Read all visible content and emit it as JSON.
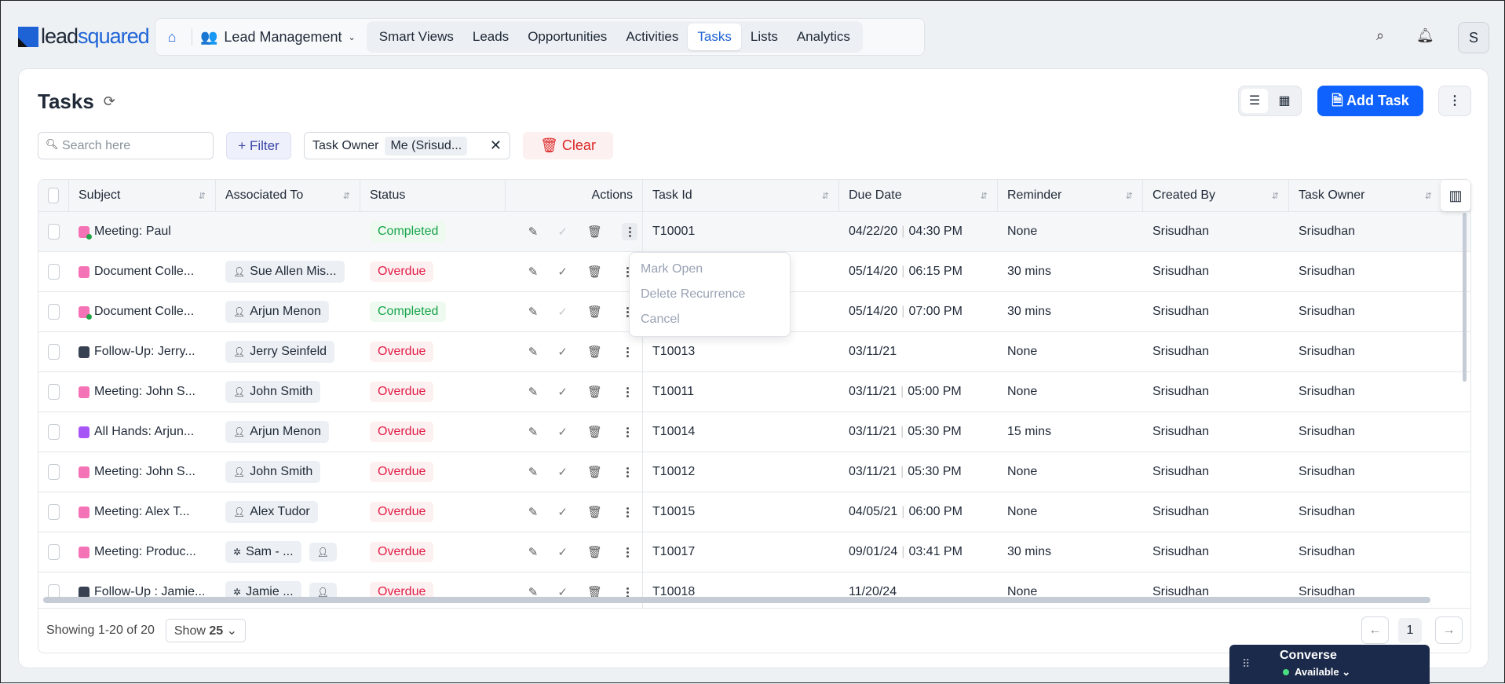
{
  "brand": {
    "logo_a": "lead",
    "logo_b": "squared"
  },
  "nav": {
    "module": "Lead Management",
    "tabs": [
      "Smart Views",
      "Leads",
      "Opportunities",
      "Activities",
      "Tasks",
      "Lists",
      "Analytics"
    ],
    "active": "Tasks"
  },
  "user": {
    "initial": "S"
  },
  "page": {
    "title": "Tasks",
    "add_task": "Add Task"
  },
  "filters": {
    "search_placeholder": "Search here",
    "filter_label": "Filter",
    "chip_label": "Task Owner",
    "chip_value": "Me (Srisud...",
    "clear_label": "Clear"
  },
  "columns": [
    "Subject",
    "Associated To",
    "Status",
    "Actions",
    "Task Id",
    "Due Date",
    "Reminder",
    "Created By",
    "Task Owner"
  ],
  "rows": [
    {
      "subject": "Meeting: Paul",
      "icon": "meeting",
      "done": true,
      "assoc": [],
      "status": "Completed",
      "id": "T10001",
      "date": "04/22/20",
      "time": "04:30 PM",
      "reminder": "None",
      "created": "Srisudhan",
      "owner": "Srisudhan"
    },
    {
      "subject": "Document Colle...",
      "icon": "meeting",
      "done": false,
      "assoc": [
        {
          "t": "Sue Allen Mis...",
          "i": "person"
        }
      ],
      "status": "Overdue",
      "id": "",
      "date": "05/14/20",
      "time": "06:15 PM",
      "reminder": "30 mins",
      "created": "Srisudhan",
      "owner": "Srisudhan"
    },
    {
      "subject": "Document Colle...",
      "icon": "meeting",
      "done": true,
      "assoc": [
        {
          "t": "Arjun Menon",
          "i": "person"
        }
      ],
      "status": "Completed",
      "id": "",
      "date": "05/14/20",
      "time": "07:00 PM",
      "reminder": "30 mins",
      "created": "Srisudhan",
      "owner": "Srisudhan"
    },
    {
      "subject": "Follow-Up: Jerry...",
      "icon": "followup",
      "done": false,
      "assoc": [
        {
          "t": "Jerry Seinfeld",
          "i": "person"
        }
      ],
      "status": "Overdue",
      "id": "T10013",
      "date": "03/11/21",
      "time": "",
      "reminder": "None",
      "created": "Srisudhan",
      "owner": "Srisudhan"
    },
    {
      "subject": "Meeting: John S...",
      "icon": "meeting",
      "done": false,
      "assoc": [
        {
          "t": "John Smith",
          "i": "person"
        }
      ],
      "status": "Overdue",
      "id": "T10011",
      "date": "03/11/21",
      "time": "05:00 PM",
      "reminder": "None",
      "created": "Srisudhan",
      "owner": "Srisudhan"
    },
    {
      "subject": "All Hands: Arjun...",
      "icon": "allhands",
      "done": false,
      "assoc": [
        {
          "t": "Arjun Menon",
          "i": "person"
        }
      ],
      "status": "Overdue",
      "id": "T10014",
      "date": "03/11/21",
      "time": "05:30 PM",
      "reminder": "15 mins",
      "created": "Srisudhan",
      "owner": "Srisudhan"
    },
    {
      "subject": "Meeting: John S...",
      "icon": "meeting",
      "done": false,
      "assoc": [
        {
          "t": "John Smith",
          "i": "person"
        }
      ],
      "status": "Overdue",
      "id": "T10012",
      "date": "03/11/21",
      "time": "05:30 PM",
      "reminder": "None",
      "created": "Srisudhan",
      "owner": "Srisudhan"
    },
    {
      "subject": "Meeting: Alex T...",
      "icon": "meeting",
      "done": false,
      "assoc": [
        {
          "t": "Alex Tudor",
          "i": "person"
        }
      ],
      "status": "Overdue",
      "id": "T10015",
      "date": "04/05/21",
      "time": "06:00 PM",
      "reminder": "None",
      "created": "Srisudhan",
      "owner": "Srisudhan"
    },
    {
      "subject": "Meeting: Produc...",
      "icon": "meeting",
      "done": false,
      "assoc": [
        {
          "t": "Sam - ...",
          "i": "opportunity"
        },
        {
          "t": "",
          "i": "person"
        }
      ],
      "status": "Overdue",
      "id": "T10017",
      "date": "09/01/24",
      "time": "03:41 PM",
      "reminder": "30 mins",
      "created": "Srisudhan",
      "owner": "Srisudhan"
    },
    {
      "subject": "Follow-Up : Jamie...",
      "icon": "followup",
      "done": false,
      "assoc": [
        {
          "t": "Jamie ...",
          "i": "opportunity"
        },
        {
          "t": "",
          "i": "person"
        }
      ],
      "status": "Overdue",
      "id": "T10018",
      "date": "11/20/24",
      "time": "",
      "reminder": "None",
      "created": "Srisudhan",
      "owner": "Srisudhan"
    }
  ],
  "menu": [
    "Mark Open",
    "Delete Recurrence",
    "Cancel"
  ],
  "footer": {
    "showing": "Showing 1-20 of 20",
    "show_label": "Show",
    "show_value": "25",
    "page": "1"
  },
  "converse": {
    "title": "Converse",
    "status": "Available"
  },
  "colors": {
    "accent": "#0f62fe",
    "completed": "#16a34a",
    "overdue": "#e11d48",
    "meeting": "#f472b6",
    "followup": "#374151",
    "allhands": "#a855f7"
  }
}
